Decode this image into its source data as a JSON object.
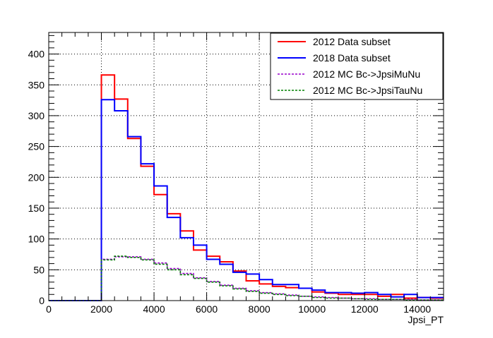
{
  "chart_data": {
    "type": "line",
    "title": "",
    "xlabel": "Jpsi_PT",
    "ylabel": "",
    "xlim": [
      0,
      15000
    ],
    "ylim": [
      0,
      435
    ],
    "grid": true,
    "x_ticks": [
      0,
      2000,
      4000,
      6000,
      8000,
      10000,
      12000,
      14000
    ],
    "y_ticks": [
      0,
      50,
      100,
      150,
      200,
      250,
      300,
      350,
      400
    ],
    "bin_edges": [
      0,
      500,
      1000,
      1500,
      2000,
      2500,
      3000,
      3500,
      4000,
      4500,
      5000,
      5500,
      6000,
      6500,
      7000,
      7500,
      8000,
      8500,
      9000,
      9500,
      10000,
      10500,
      11000,
      11500,
      12000,
      12500,
      13000,
      13500,
      14000,
      14500,
      15000
    ],
    "legend_position": "top-right",
    "series": [
      {
        "name": "2012 Data subset",
        "color": "#ff0000",
        "style": "solid",
        "values": [
          0,
          0,
          0,
          0,
          366,
          327,
          263,
          218,
          172,
          141,
          113,
          82,
          72,
          63,
          48,
          32,
          27,
          23,
          21,
          20,
          14,
          12,
          10,
          10,
          10,
          7,
          10,
          4,
          5,
          4
        ]
      },
      {
        "name": "2018 Data subset",
        "color": "#0000ff",
        "style": "solid",
        "values": [
          0,
          0,
          0,
          0,
          326,
          308,
          266,
          222,
          186,
          135,
          102,
          90,
          67,
          59,
          46,
          43,
          34,
          26,
          26,
          20,
          17,
          13,
          13,
          12,
          13,
          10,
          6,
          10,
          5,
          5
        ]
      },
      {
        "name": "2012 MC Bc->JpsiMuNu",
        "color": "#9900cc",
        "style": "dashed",
        "values": [
          0,
          0,
          0,
          0,
          67,
          71,
          71,
          67,
          61,
          52,
          44,
          37,
          31,
          25,
          20,
          16,
          13,
          11,
          9,
          7,
          6,
          5,
          4,
          3,
          3,
          2,
          2,
          2,
          1,
          1
        ]
      },
      {
        "name": "2012 MC Bc->JpsiTauNu",
        "color": "#008000",
        "style": "dashed",
        "values": [
          0,
          0,
          0,
          0,
          66,
          72,
          70,
          66,
          59,
          50,
          42,
          36,
          30,
          24,
          19,
          15,
          12,
          10,
          8,
          7,
          5,
          4,
          4,
          3,
          2,
          2,
          2,
          1,
          1,
          1
        ]
      }
    ]
  }
}
